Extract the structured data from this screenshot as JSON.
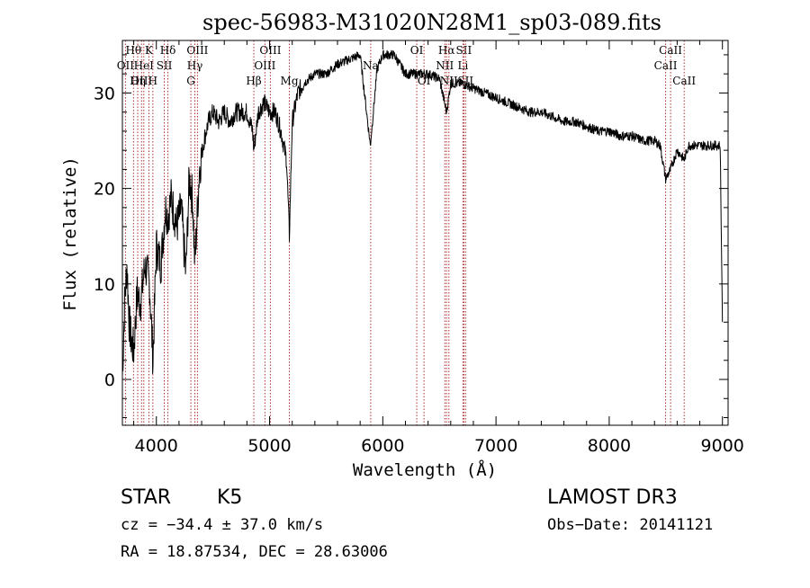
{
  "chart_data": {
    "type": "line",
    "title": "spec-56983-M31020N28M1_sp03-089.fits",
    "xlabel": "Wavelength (Å)",
    "ylabel": "Flux (relative)",
    "xlim": [
      3700,
      9050
    ],
    "ylim": [
      -4.8,
      35.5
    ],
    "x_ticks": [
      4000,
      5000,
      6000,
      7000,
      8000,
      9000
    ],
    "x_tick_labels": [
      "4000",
      "5000",
      "6000",
      "7000",
      "8000",
      "9000"
    ],
    "y_ticks": [
      0,
      10,
      20,
      30
    ],
    "y_tick_labels": [
      "0",
      "10",
      "20",
      "30"
    ],
    "series": [
      {
        "name": "spectrum",
        "color": "#000000",
        "x": [
          3700,
          3720,
          3740,
          3760,
          3780,
          3800,
          3830,
          3860,
          3900,
          3940,
          3970,
          4000,
          4040,
          4080,
          4102,
          4130,
          4180,
          4220,
          4260,
          4290,
          4320,
          4340,
          4380,
          4420,
          4460,
          4500,
          4550,
          4600,
          4650,
          4700,
          4750,
          4800,
          4850,
          4861,
          4900,
          4950,
          5000,
          5050,
          5100,
          5150,
          5175,
          5200,
          5250,
          5300,
          5400,
          5500,
          5600,
          5700,
          5800,
          5890,
          5950,
          6000,
          6050,
          6100,
          6150,
          6200,
          6250,
          6300,
          6350,
          6400,
          6500,
          6563,
          6600,
          6700,
          6800,
          6900,
          7000,
          7100,
          7200,
          7300,
          7400,
          7500,
          7600,
          7700,
          7800,
          7900,
          8000,
          8100,
          8200,
          8300,
          8400,
          8450,
          8498,
          8542,
          8600,
          8662,
          8700,
          8800,
          8900,
          8980,
          9000
        ],
        "y": [
          0.5,
          8,
          12,
          6,
          4,
          3,
          9,
          8,
          12,
          10,
          2,
          14,
          12,
          18,
          17,
          19,
          16,
          18,
          11,
          21,
          19,
          12,
          22,
          25,
          27,
          28,
          27,
          28,
          27,
          28,
          28,
          28,
          26,
          24,
          28,
          29,
          28,
          28,
          26,
          23,
          15,
          27,
          30,
          31,
          32,
          32,
          33,
          33.5,
          34,
          24.5,
          32.5,
          34,
          34,
          34,
          33,
          32,
          32,
          32,
          32,
          32,
          31.5,
          28,
          31,
          31,
          30.5,
          30,
          29.5,
          29,
          28.5,
          28,
          28,
          27.5,
          27,
          27,
          26.5,
          26,
          26,
          25.5,
          25.5,
          25,
          25,
          24.5,
          21,
          22,
          24,
          23,
          24.5,
          24.5,
          24.5,
          24.5,
          6
        ]
      }
    ],
    "line_markers": [
      {
        "label": "Hθ",
        "wavelength": 3798,
        "row": 0
      },
      {
        "label": "OII",
        "wavelength": 3727,
        "row": 1
      },
      {
        "label": "OIII",
        "wavelength": 3869,
        "row": 2
      },
      {
        "label": "K",
        "wavelength": 3934,
        "row": 0
      },
      {
        "label": "HeI",
        "wavelength": 3889,
        "row": 1
      },
      {
        "label": "Hη",
        "wavelength": 3835,
        "row": 2
      },
      {
        "label": "SII",
        "wavelength": 4070,
        "row": 1
      },
      {
        "label": "H",
        "wavelength": 3969,
        "row": 2
      },
      {
        "label": "Hδ",
        "wavelength": 4102,
        "row": 0
      },
      {
        "label": "OIII",
        "wavelength": 4363,
        "row": 0
      },
      {
        "label": "Hγ",
        "wavelength": 4340,
        "row": 1
      },
      {
        "label": "G",
        "wavelength": 4305,
        "row": 2
      },
      {
        "label": "Hβ",
        "wavelength": 4861,
        "row": 2
      },
      {
        "label": "OIII",
        "wavelength": 5007,
        "row": 0
      },
      {
        "label": "OIII",
        "wavelength": 4959,
        "row": 1
      },
      {
        "label": "Mg",
        "wavelength": 5175,
        "row": 2
      },
      {
        "label": "Na",
        "wavelength": 5893,
        "row": 1
      },
      {
        "label": "OI",
        "wavelength": 6300,
        "row": 0
      },
      {
        "label": "OI",
        "wavelength": 6364,
        "row": 2
      },
      {
        "label": "Hα",
        "wavelength": 6563,
        "row": 0
      },
      {
        "label": "SII",
        "wavelength": 6716,
        "row": 0
      },
      {
        "label": "NII",
        "wavelength": 6548,
        "row": 1
      },
      {
        "label": "Li",
        "wavelength": 6708,
        "row": 1
      },
      {
        "label": "NII",
        "wavelength": 6584,
        "row": 2
      },
      {
        "label": "SII",
        "wavelength": 6731,
        "row": 2
      },
      {
        "label": "CaII",
        "wavelength": 8542,
        "row": 0
      },
      {
        "label": "CaII",
        "wavelength": 8498,
        "row": 1
      },
      {
        "label": "CaII",
        "wavelength": 8662,
        "row": 2
      }
    ]
  },
  "info": {
    "class_label": "STAR",
    "subclass": "K5",
    "survey": "LAMOST DR3",
    "redshift_text": "cz = −34.4 ± 37.0 km/s",
    "obs_date_text": "Obs−Date: 20141121",
    "coords_text": "RA =  18.87534, DEC =  28.63006"
  },
  "colors": {
    "marker_line": "#b03030",
    "axis": "#000000",
    "spectrum": "#000000"
  }
}
